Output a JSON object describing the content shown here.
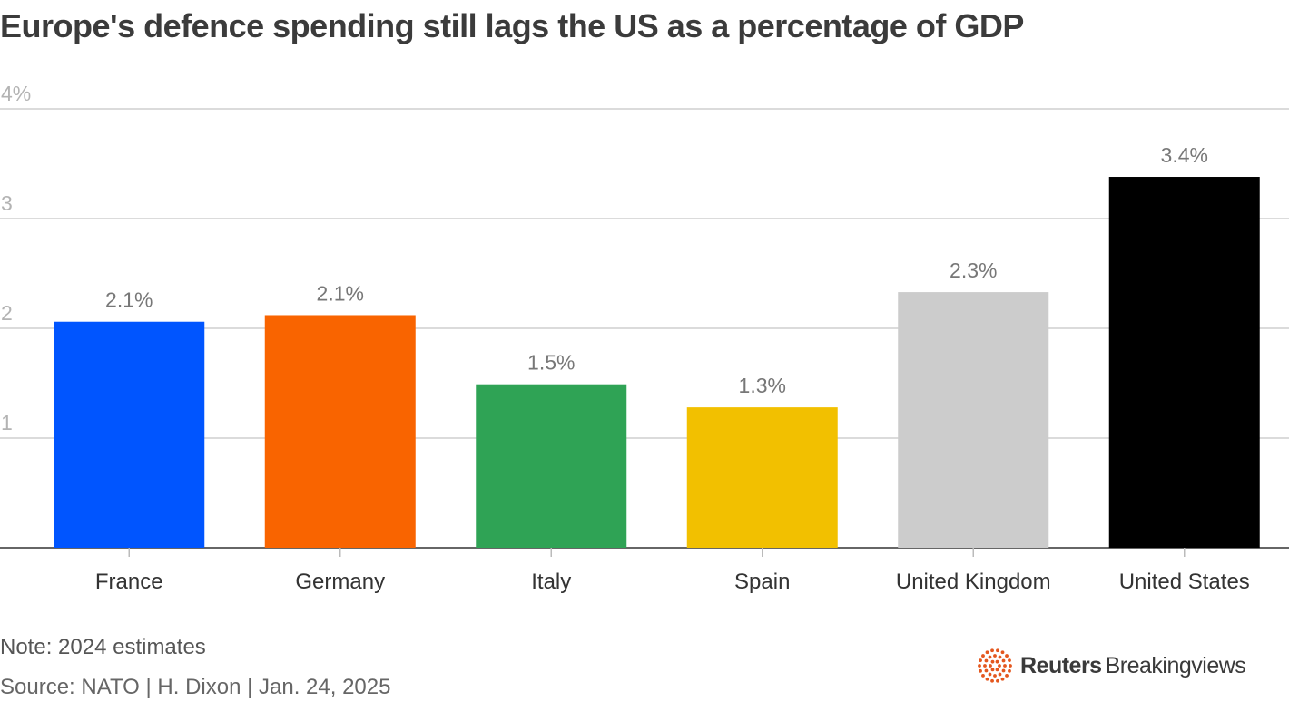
{
  "title": "Europe's defence spending still lags the US as a percentage of GDP",
  "note": "Note: 2024 estimates",
  "source": "Source: NATO | H. Dixon | Jan. 24, 2025",
  "brand": {
    "name_bold": "Reuters",
    "name_regular": "Breakingviews",
    "logo_icon": "reuters-dot-ring-icon",
    "logo_color": "#e4571e"
  },
  "chart_data": {
    "type": "bar",
    "title": "Europe's defence spending still lags the US as a percentage of GDP",
    "xlabel": "",
    "ylabel": "",
    "ylim": [
      0,
      4
    ],
    "grid": true,
    "y_ticks": [
      {
        "value": 1,
        "label": "1"
      },
      {
        "value": 2,
        "label": "2"
      },
      {
        "value": 3,
        "label": "3"
      },
      {
        "value": 4,
        "label": "4%"
      }
    ],
    "categories": [
      "France",
      "Germany",
      "Italy",
      "Spain",
      "United Kingdom",
      "United States"
    ],
    "values": [
      2.06,
      2.12,
      1.49,
      1.28,
      2.33,
      3.38
    ],
    "value_labels": [
      "2.1%",
      "2.1%",
      "1.5%",
      "1.3%",
      "2.3%",
      "3.4%"
    ],
    "colors": [
      "#0055ff",
      "#f96400",
      "#2fa355",
      "#f2c000",
      "#cccccc",
      "#000000"
    ]
  }
}
